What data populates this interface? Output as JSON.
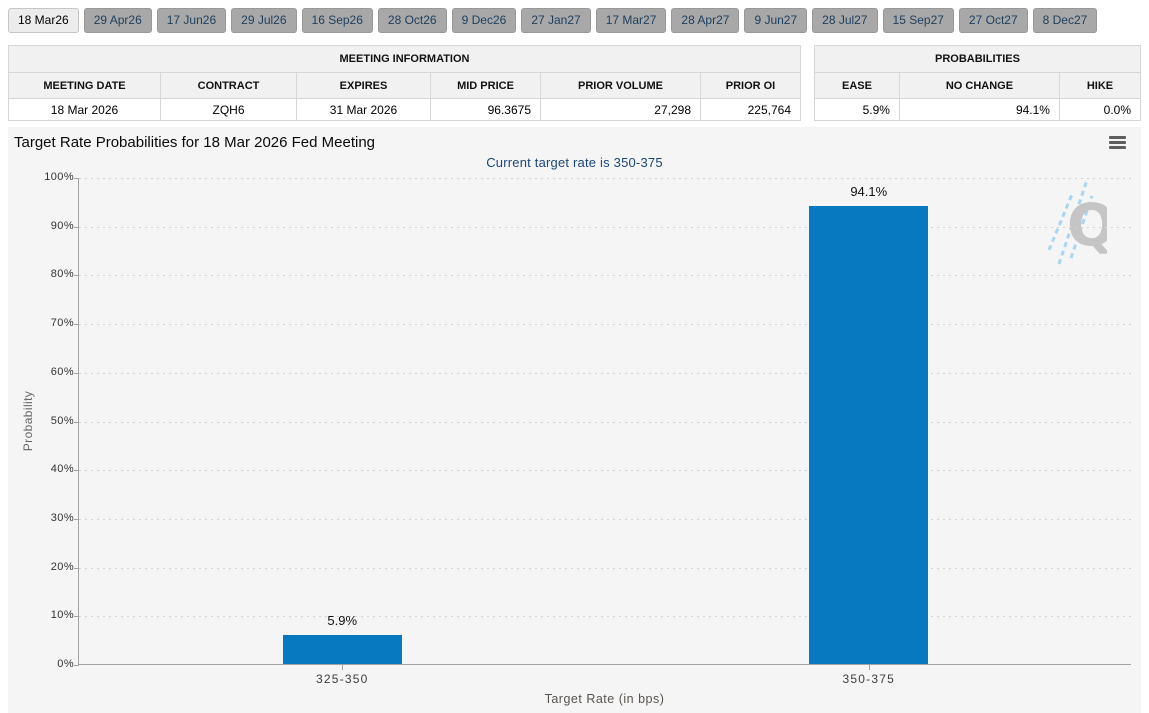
{
  "tabs": {
    "items": [
      "18 Mar26",
      "29 Apr26",
      "17 Jun26",
      "29 Jul26",
      "16 Sep26",
      "28 Oct26",
      "9 Dec26",
      "27 Jan27",
      "17 Mar27",
      "28 Apr27",
      "9 Jun27",
      "28 Jul27",
      "15 Sep27",
      "27 Oct27",
      "8 Dec27"
    ],
    "selected_index": 0
  },
  "meeting_info": {
    "title": "MEETING INFORMATION",
    "columns": [
      "MEETING DATE",
      "CONTRACT",
      "EXPIRES",
      "MID PRICE",
      "PRIOR VOLUME",
      "PRIOR OI"
    ],
    "row": {
      "meeting_date": "18 Mar 2026",
      "contract": "ZQH6",
      "expires": "31 Mar 2026",
      "mid_price": "96.3675",
      "prior_volume": "27,298",
      "prior_oi": "225,764"
    }
  },
  "probabilities": {
    "title": "PROBABILITIES",
    "columns": [
      "EASE",
      "NO CHANGE",
      "HIKE"
    ],
    "row": {
      "ease": "5.9%",
      "no_change": "94.1%",
      "hike": "0.0%"
    }
  },
  "chart": {
    "title": "Target Rate Probabilities for 18 Mar 2026 Fed Meeting",
    "subtitle": "Current target rate is 350-375",
    "menu_icon": "hamburger-menu-icon",
    "watermark_letter": "Q"
  },
  "chart_data": {
    "type": "bar",
    "categories": [
      "325-350",
      "350-375"
    ],
    "values": [
      5.9,
      94.1
    ],
    "value_labels": [
      "5.9%",
      "94.1%"
    ],
    "title": "Target Rate Probabilities for 18 Mar 2026 Fed Meeting",
    "subtitle": "Current target rate is 350-375",
    "xlabel": "Target Rate (in bps)",
    "ylabel": "Probability",
    "ylim": [
      0,
      100
    ],
    "yticks": [
      0,
      10,
      20,
      30,
      40,
      50,
      60,
      70,
      80,
      90,
      100
    ],
    "ytick_labels": [
      "0%",
      "10%",
      "20%",
      "30%",
      "40%",
      "50%",
      "60%",
      "70%",
      "80%",
      "90%",
      "100%"
    ],
    "grid": true,
    "legend": false,
    "bar_color": "#0779c0"
  },
  "colors": {
    "bar": "#0779c0",
    "panel_background": "#f5f5f5",
    "subtitle_text": "#1b4677",
    "tab_unselected": "#a8a8a8",
    "tab_selected": "#ececec",
    "watermark_gray": "#c5c5c5",
    "watermark_blue": "#aad4ef"
  }
}
